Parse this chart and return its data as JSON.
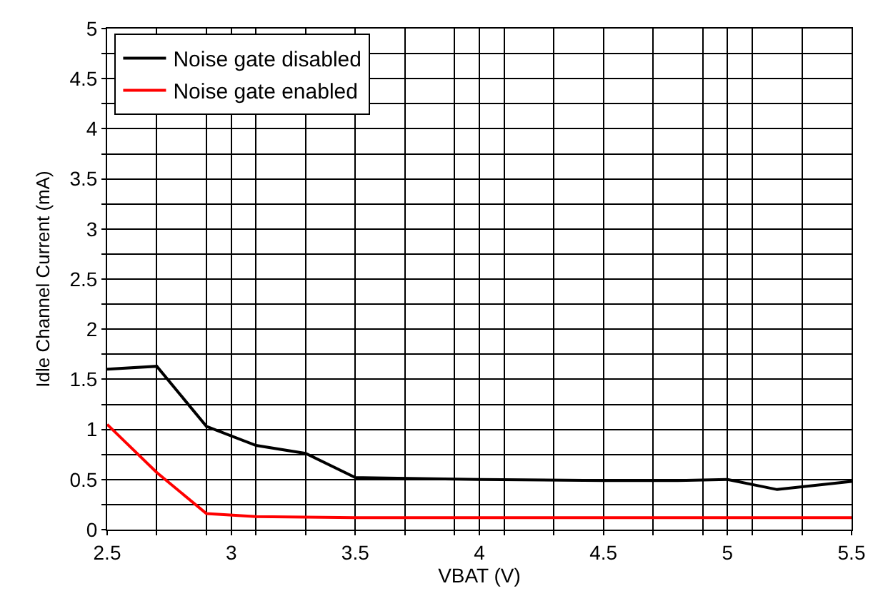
{
  "chart_data": {
    "type": "line",
    "xlabel": "VBAT (V)",
    "ylabel": "Idle Channel Current (mA)",
    "xlim": [
      2.5,
      5.5
    ],
    "ylim": [
      0,
      5
    ],
    "xticks": [
      2.5,
      {
        "value": 2.7,
        "label": null
      },
      {
        "value": 2.9,
        "label": null
      },
      3,
      {
        "value": 3.1,
        "label": null
      },
      {
        "value": 3.3,
        "label": null
      },
      3.5,
      {
        "value": 3.7,
        "label": null
      },
      {
        "value": 3.9,
        "label": null
      },
      4,
      {
        "value": 4.1,
        "label": null
      },
      {
        "value": 4.3,
        "label": null
      },
      4.5,
      {
        "value": 4.7,
        "label": null
      },
      {
        "value": 4.9,
        "label": null
      },
      5,
      {
        "value": 5.1,
        "label": null
      },
      {
        "value": 5.3,
        "label": null
      },
      5.5
    ],
    "yticks": [
      0,
      {
        "value": 0.25,
        "label": null
      },
      0.5,
      {
        "value": 0.75,
        "label": null
      },
      1,
      {
        "value": 1.25,
        "label": null
      },
      1.5,
      {
        "value": 1.75,
        "label": null
      },
      2,
      {
        "value": 2.25,
        "label": null
      },
      2.5,
      {
        "value": 2.75,
        "label": null
      },
      3,
      {
        "value": 3.25,
        "label": null
      },
      3.5,
      {
        "value": 3.75,
        "label": null
      },
      4,
      {
        "value": 4.25,
        "label": null
      },
      4.5,
      {
        "value": 4.75,
        "label": null
      },
      5
    ],
    "grid": true,
    "legend": "top left",
    "marker": "none",
    "line_style": "solid",
    "series": [
      {
        "name": "Noise gate disabled",
        "color": "#000000",
        "x": [
          2.5,
          2.7,
          2.9,
          3.1,
          3.3,
          3.5,
          4,
          4.5,
          4.8,
          5,
          5.2,
          5.5
        ],
        "values": [
          1.6,
          1.63,
          1.03,
          0.84,
          0.76,
          0.52,
          0.5,
          0.49,
          0.49,
          0.5,
          0.4,
          0.48
        ]
      },
      {
        "name": "Noise gate enabled",
        "color": "#ff0000",
        "x": [
          2.5,
          2.7,
          2.9,
          3.1,
          3.5,
          4,
          5,
          5.5
        ],
        "values": [
          1.05,
          0.57,
          0.16,
          0.13,
          0.12,
          0.12,
          0.12,
          0.12
        ]
      }
    ]
  }
}
